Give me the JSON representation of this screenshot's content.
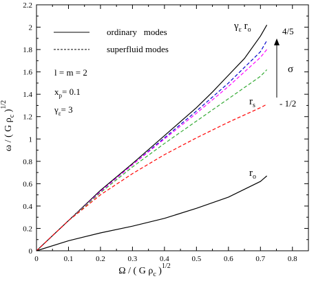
{
  "chart_data": {
    "type": "line",
    "xlabel": {
      "main": "Ω / ( G ρ",
      "sub": "c",
      "close": " )",
      "sup": "1/2"
    },
    "ylabel": {
      "main": "ω / ( G ρ",
      "sub": "c",
      "close": " )",
      "sup": "1/2"
    },
    "xlim": [
      0,
      0.85
    ],
    "ylim": [
      0,
      2.2
    ],
    "xticks": [
      "0",
      "0.1",
      "0.2",
      "0.3",
      "0.4",
      "0.5",
      "0.6",
      "0.7",
      "0.8"
    ],
    "yticks": [
      "0",
      "0.2",
      "0.4",
      "0.6",
      "0.8",
      "1",
      "1.2",
      "1.4",
      "1.6",
      "1.8",
      "2",
      "2.2"
    ],
    "xtick_values": [
      0,
      0.1,
      0.2,
      0.3,
      0.4,
      0.5,
      0.6,
      0.7,
      0.8
    ],
    "ytick_values": [
      0,
      0.2,
      0.4,
      0.6,
      0.8,
      1.0,
      1.2,
      1.4,
      1.6,
      1.8,
      2.0,
      2.2
    ],
    "legend": [
      {
        "label": "ordinary   modes",
        "style": "solid"
      },
      {
        "label": "superfluid modes",
        "style": "dashed"
      }
    ],
    "series": [
      {
        "color": "#000000",
        "dash": "solid",
        "x": [
          0,
          0.1,
          0.2,
          0.3,
          0.4,
          0.5,
          0.55,
          0.6,
          0.65,
          0.7,
          0.72
        ],
        "y": [
          0,
          0.27,
          0.54,
          0.78,
          1.03,
          1.28,
          1.42,
          1.57,
          1.72,
          1.92,
          2.02
        ]
      },
      {
        "color": "#0000cc",
        "dash": "dashed",
        "x": [
          0,
          0.1,
          0.2,
          0.3,
          0.4,
          0.5,
          0.6,
          0.7,
          0.72
        ],
        "y": [
          0,
          0.27,
          0.53,
          0.77,
          1.01,
          1.25,
          1.5,
          1.78,
          1.88
        ]
      },
      {
        "color": "#ff00ff",
        "dash": "dashed",
        "x": [
          0,
          0.1,
          0.2,
          0.3,
          0.4,
          0.5,
          0.6,
          0.7,
          0.72
        ],
        "y": [
          0,
          0.27,
          0.53,
          0.77,
          1.0,
          1.23,
          1.47,
          1.73,
          1.8
        ]
      },
      {
        "color": "#33aa33",
        "dash": "dashed",
        "x": [
          0,
          0.1,
          0.2,
          0.3,
          0.4,
          0.5,
          0.6,
          0.7,
          0.72
        ],
        "y": [
          0,
          0.27,
          0.52,
          0.75,
          0.96,
          1.16,
          1.36,
          1.56,
          1.62
        ]
      },
      {
        "color": "#ff0000",
        "dash": "dashed",
        "x": [
          0,
          0.1,
          0.2,
          0.3,
          0.4,
          0.5,
          0.6,
          0.7,
          0.72
        ],
        "y": [
          0,
          0.27,
          0.5,
          0.69,
          0.86,
          1.01,
          1.15,
          1.28,
          1.31
        ]
      },
      {
        "color": "#000000",
        "dash": "solid",
        "x": [
          0,
          0.1,
          0.2,
          0.3,
          0.4,
          0.5,
          0.6,
          0.7,
          0.72
        ],
        "y": [
          0,
          0.09,
          0.16,
          0.22,
          0.29,
          0.38,
          0.48,
          0.62,
          0.67
        ]
      }
    ],
    "annotations": {
      "params": [
        "l = m = 2",
        "x",
        "γ",
        "= 0.1",
        "= 3",
        "p",
        "ε"
      ],
      "label_gamma_ro": {
        "gamma": "γ",
        "gsub": "ε",
        "r": " r",
        "rsub": "o"
      },
      "label_rs": {
        "r": "r",
        "sub": "s"
      },
      "label_ro": {
        "r": "r",
        "sub": "o"
      },
      "sigma": "σ",
      "sigma_top": "4/5",
      "sigma_bottom": "- 1/2"
    },
    "grid": false
  }
}
